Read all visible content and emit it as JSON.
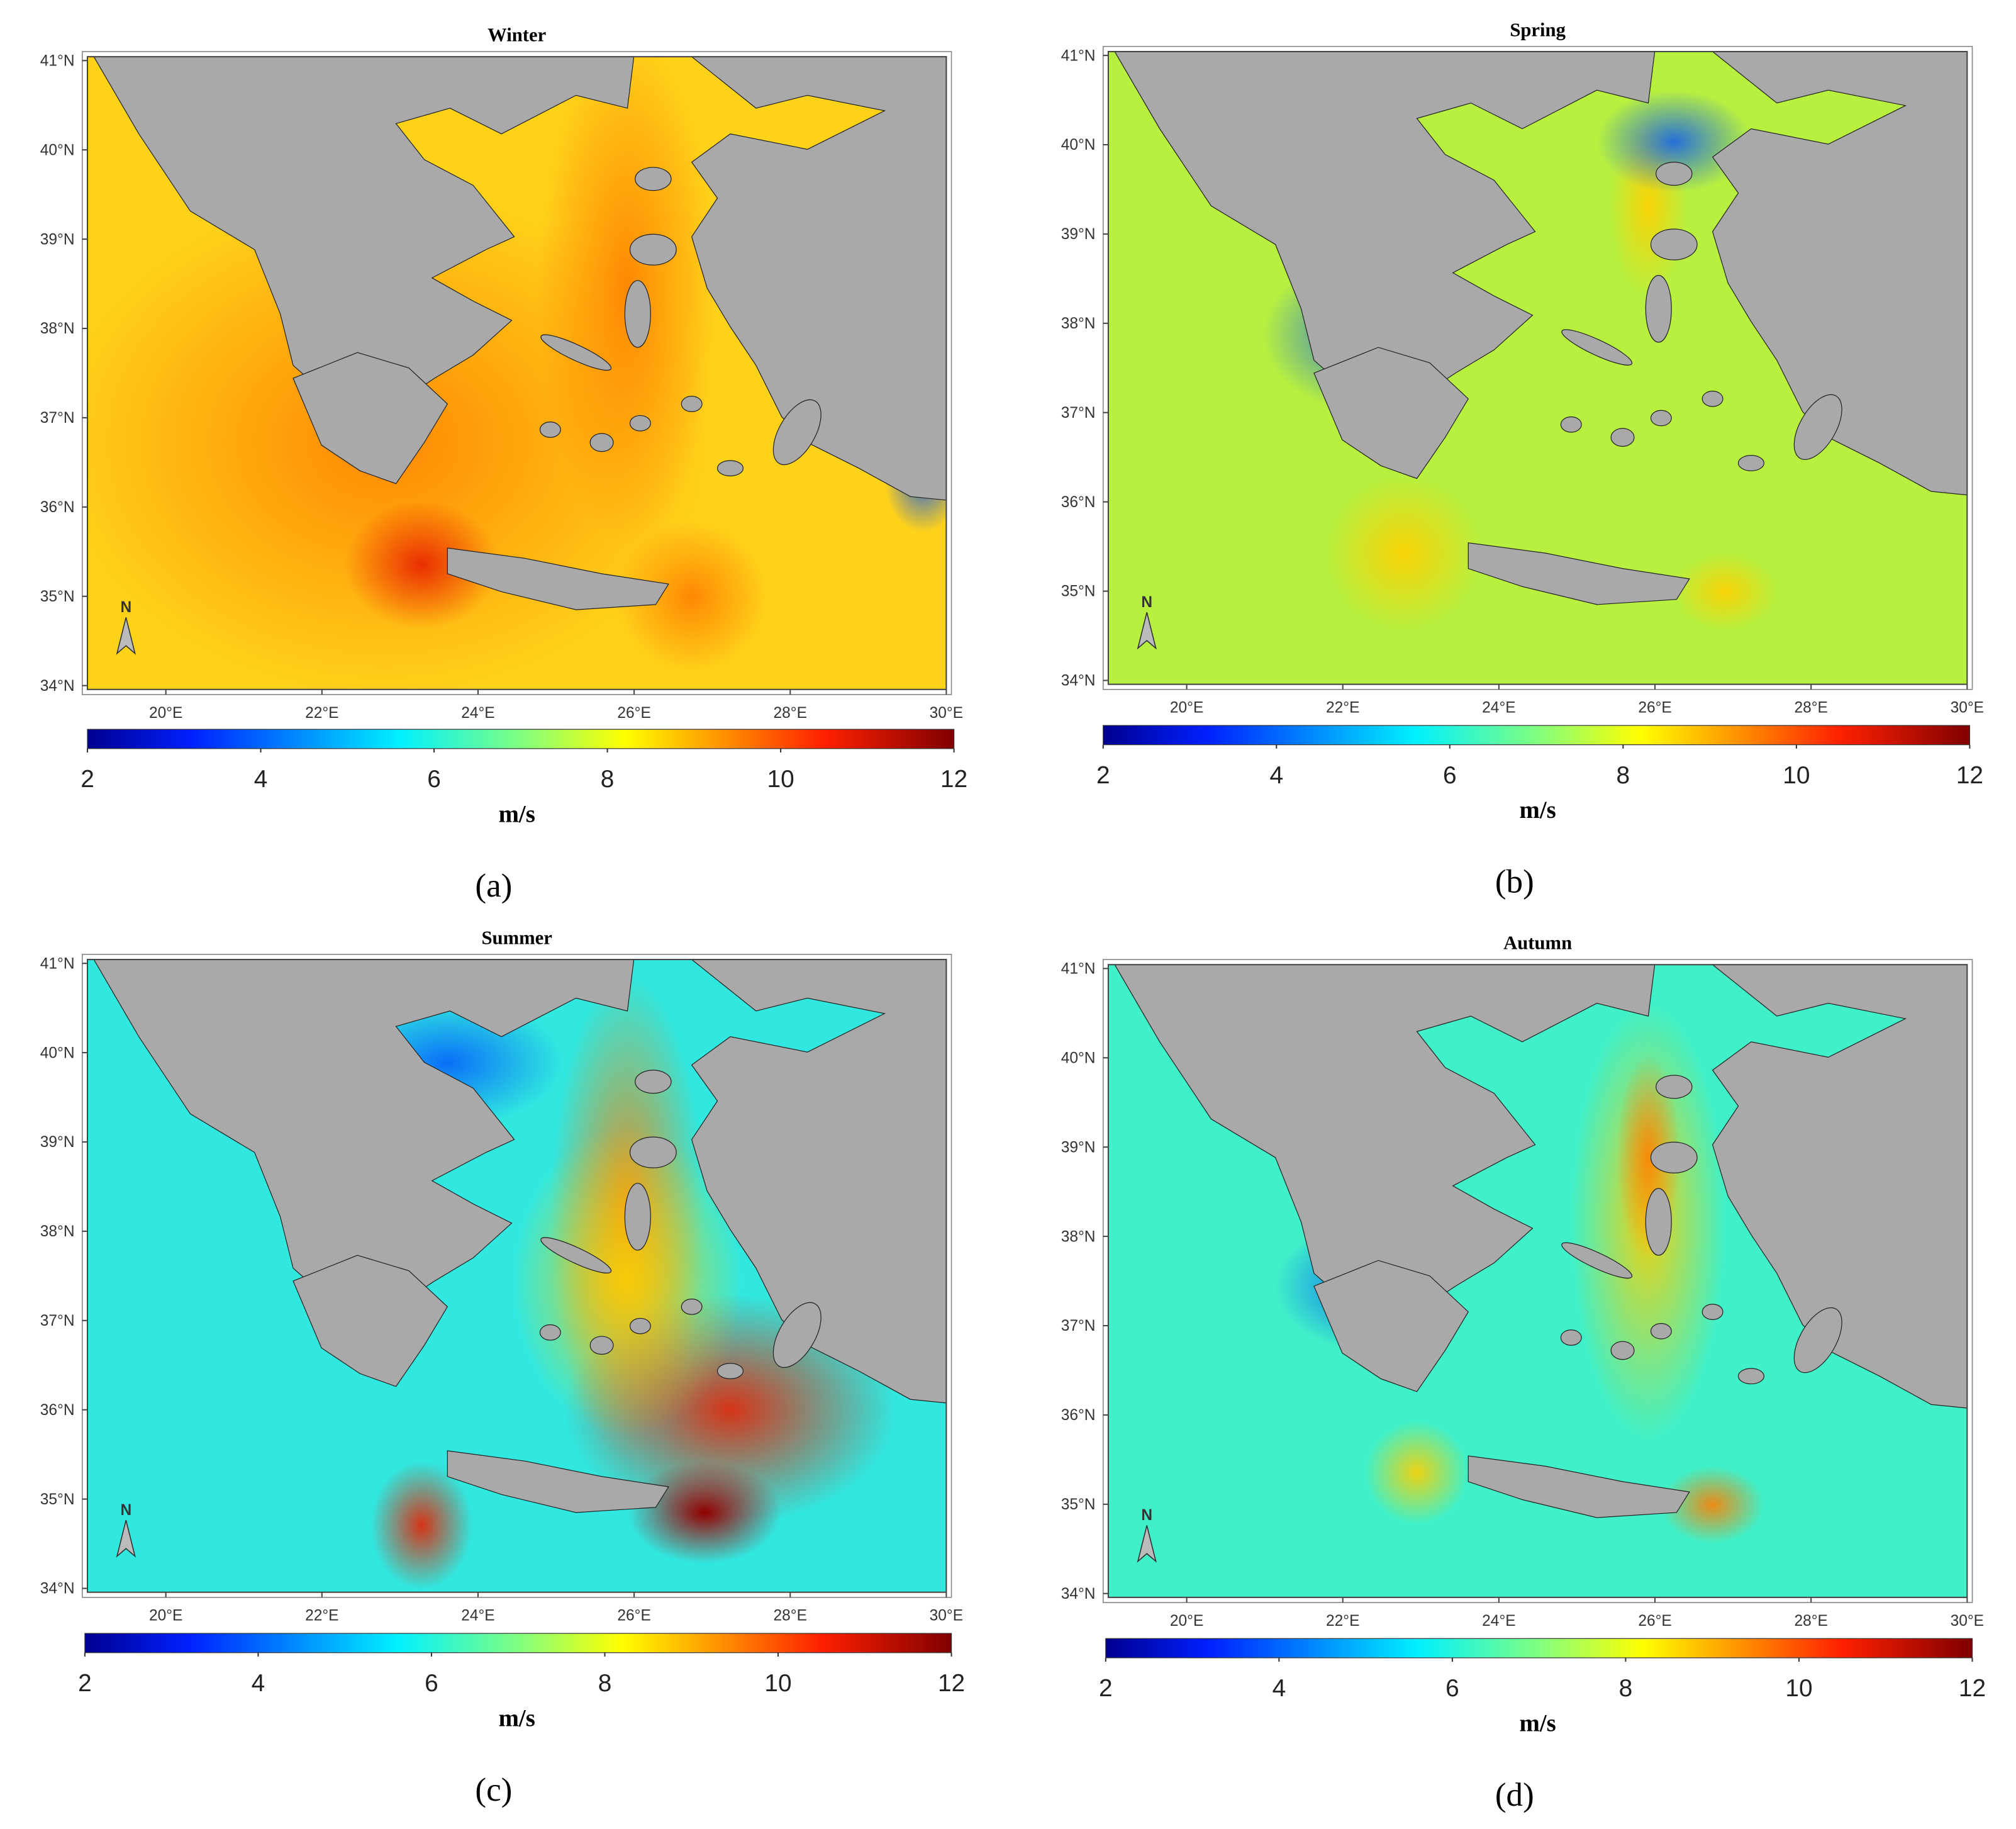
{
  "panels": [
    {
      "title": "Winter",
      "label": "(a)",
      "lat_ticks": [
        "41°N",
        "40°N",
        "39°N",
        "38°N",
        "37°N",
        "36°N",
        "35°N",
        "34°N"
      ],
      "lon_ticks": [
        "20°E",
        "22°E",
        "24°E",
        "26°E",
        "28°E",
        "30°E"
      ],
      "colorbar_ticks": [
        2,
        4,
        6,
        8,
        10,
        12
      ],
      "colorbar_unit": "m/s",
      "north": "N"
    },
    {
      "title": "Spring",
      "label": "(b)",
      "lat_ticks": [
        "41°N",
        "40°N",
        "39°N",
        "38°N",
        "37°N",
        "36°N",
        "35°N",
        "34°N"
      ],
      "lon_ticks": [
        "20°E",
        "22°E",
        "24°E",
        "26°E",
        "28°E",
        "30°E"
      ],
      "colorbar_ticks": [
        2,
        4,
        6,
        8,
        10,
        12
      ],
      "colorbar_unit": "m/s",
      "north": "N"
    },
    {
      "title": "Summer",
      "label": "(c)",
      "lat_ticks": [
        "41°N",
        "40°N",
        "39°N",
        "38°N",
        "37°N",
        "36°N",
        "35°N",
        "34°N"
      ],
      "lon_ticks": [
        "20°E",
        "22°E",
        "24°E",
        "26°E",
        "28°E",
        "30°E"
      ],
      "colorbar_ticks": [
        2,
        4,
        6,
        8,
        10,
        12
      ],
      "colorbar_unit": "m/s",
      "north": "N"
    },
    {
      "title": "Autumn",
      "label": "(d)",
      "lat_ticks": [
        "41°N",
        "40°N",
        "39°N",
        "38°N",
        "37°N",
        "36°N",
        "35°N",
        "34°N"
      ],
      "lon_ticks": [
        "20°E",
        "22°E",
        "24°E",
        "26°E",
        "28°E",
        "30°E"
      ],
      "colorbar_ticks": [
        2,
        4,
        6,
        8,
        10,
        12
      ],
      "colorbar_unit": "m/s",
      "north": "N"
    }
  ]
}
